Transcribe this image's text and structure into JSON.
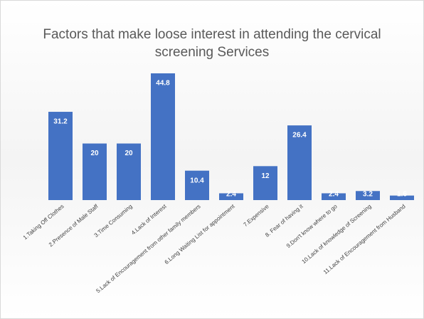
{
  "chart_data": {
    "type": "bar",
    "title": "Factors that make loose interest in attending the cervical screening Services",
    "categories": [
      "1.Taking Off Clothes",
      "2.Presence of Male Staff",
      "3.Time Consuming",
      "4.Lack of Interest",
      "5.Lack of Encouragement from other family members",
      "6.Long Waiting List for appointment",
      "7.Expensive",
      "8. Fear of having it",
      "9.Don't know where to go",
      "10.Lack of knowledge of Screening",
      "11.Lack of Encouragement from Husband"
    ],
    "values": [
      31.2,
      20,
      20,
      44.8,
      10.4,
      2.4,
      12,
      26.4,
      2.4,
      3.2,
      1.6
    ],
    "color": "#4472c4"
  }
}
